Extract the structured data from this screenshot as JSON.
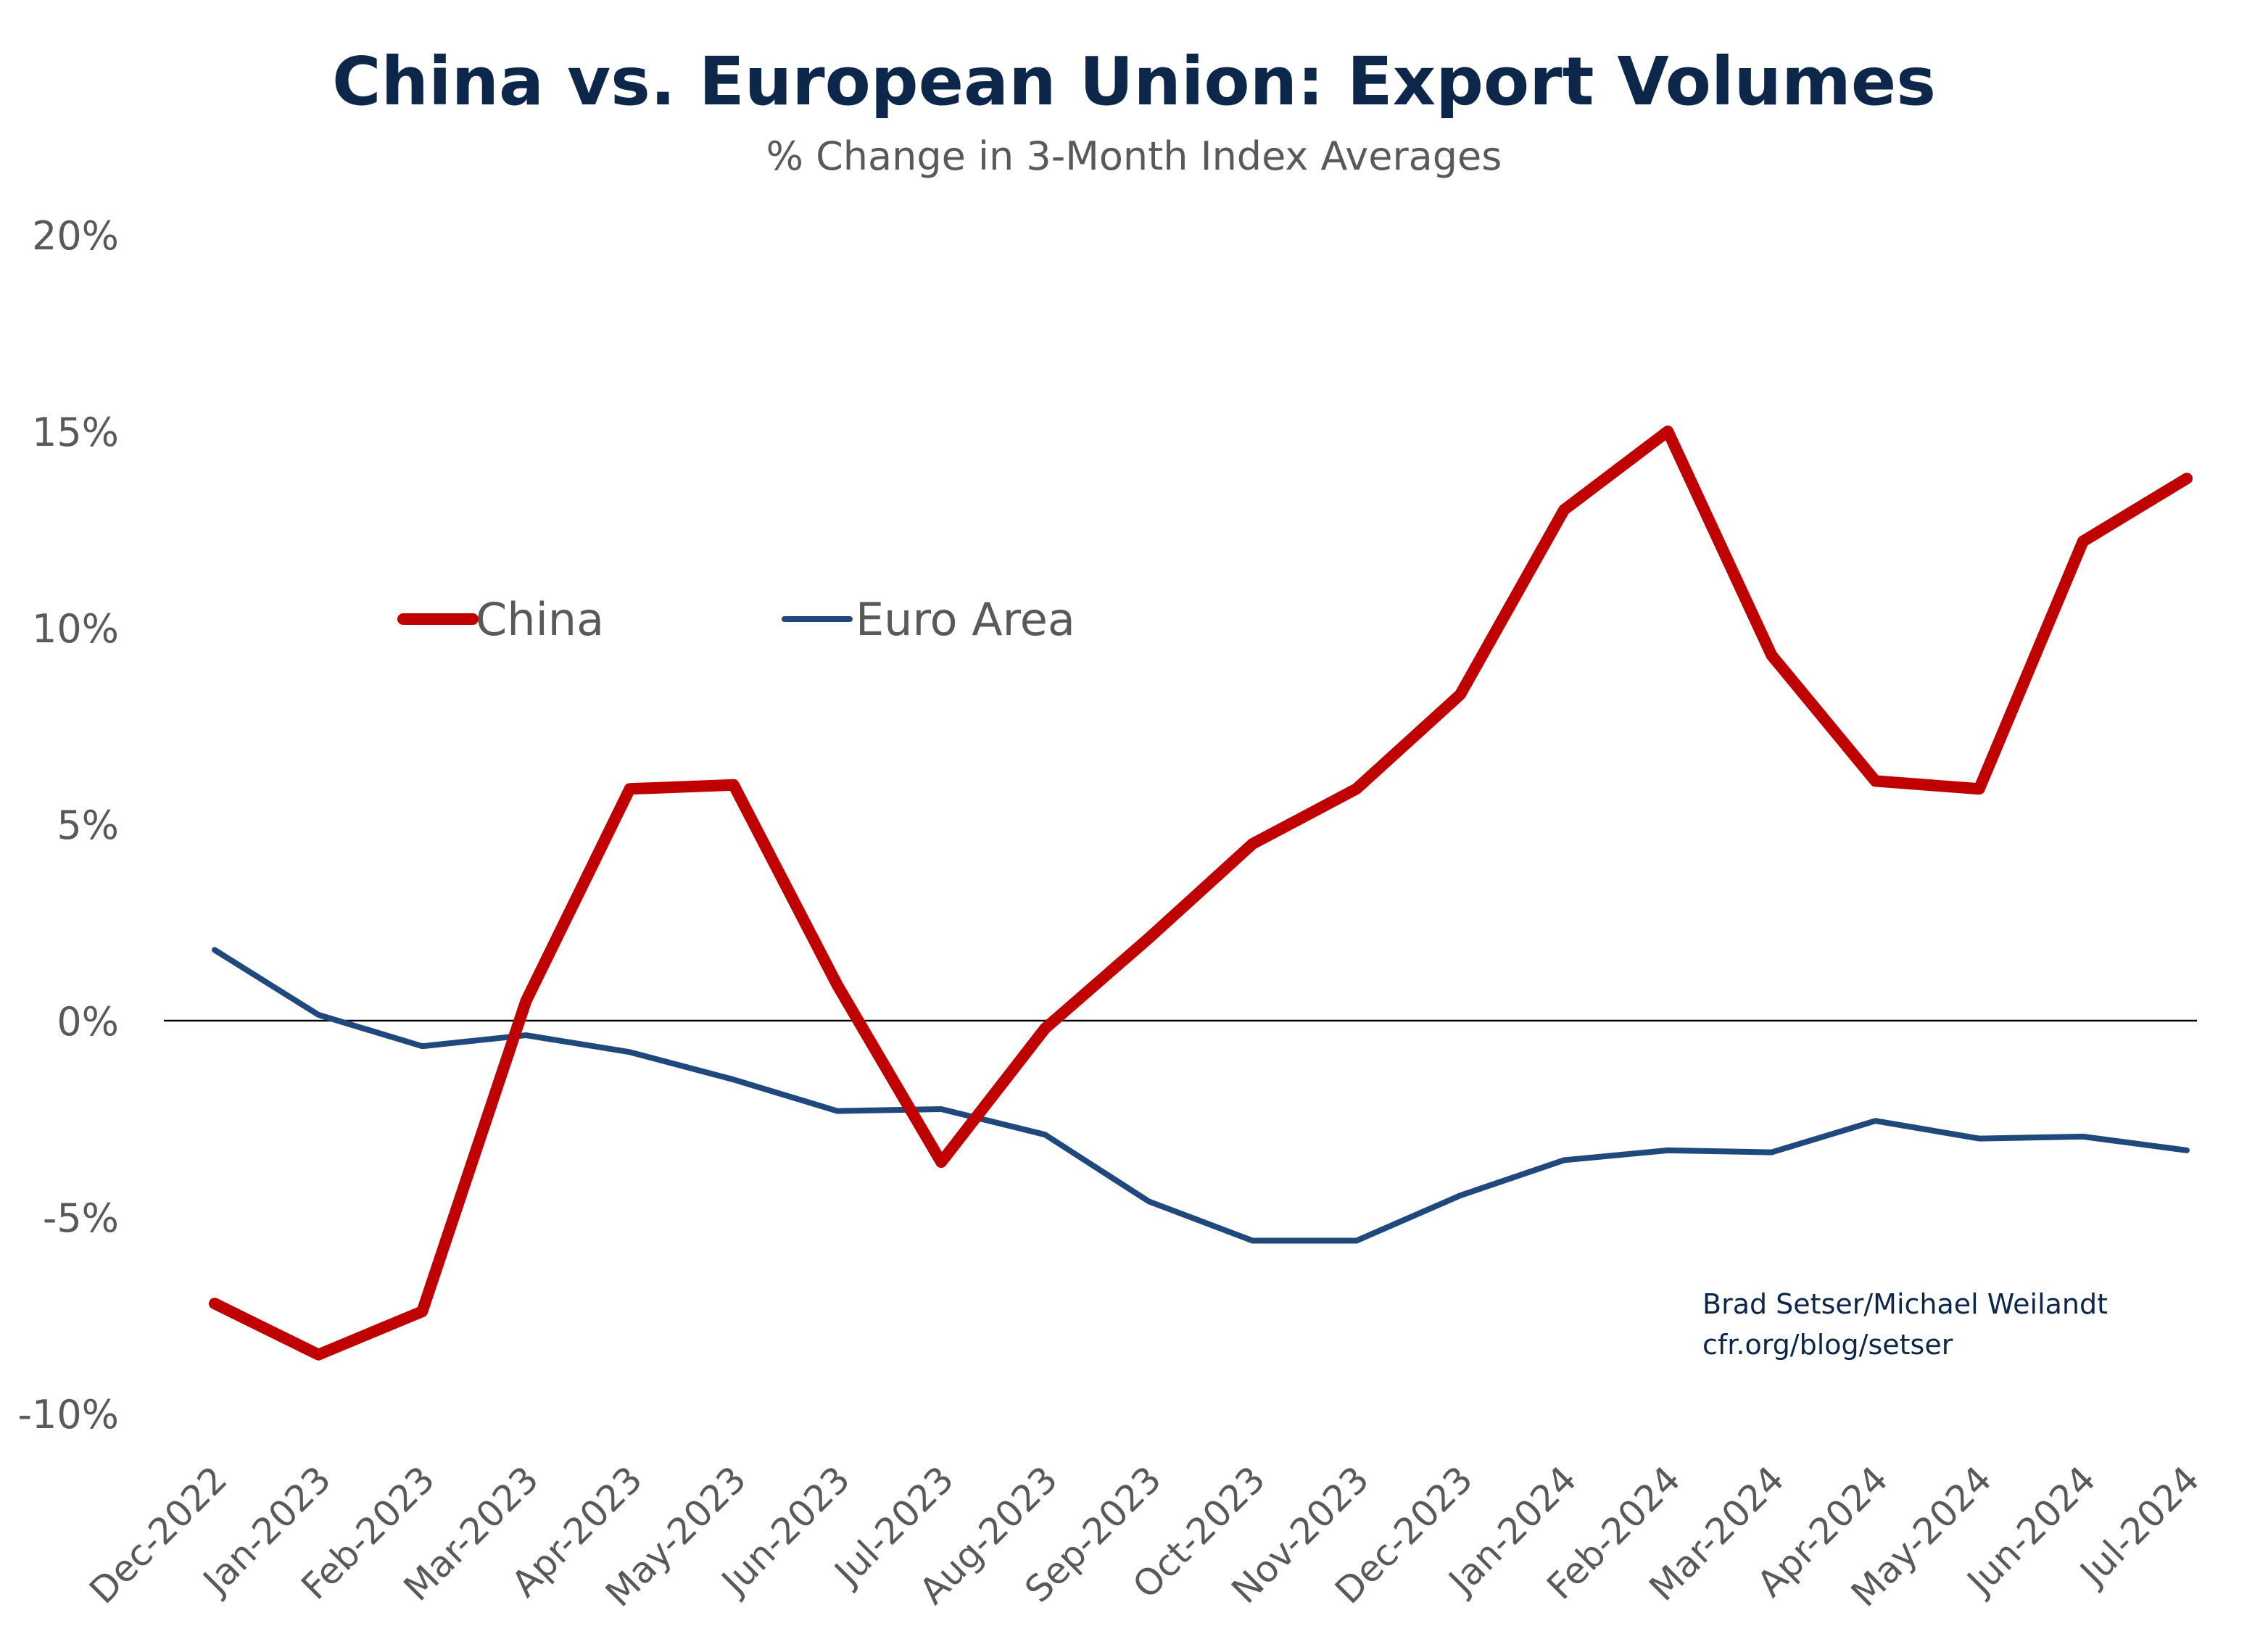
{
  "chart_data": {
    "type": "line",
    "title": "China vs. European Union: Export Volumes",
    "subtitle": "% Change in 3-Month Index Averages",
    "xlabel": "",
    "ylabel": "",
    "ylim": [
      -10,
      20
    ],
    "yticks": [
      "-10%",
      "-5%",
      "0%",
      "5%",
      "10%",
      "15%",
      "20%"
    ],
    "ytick_values": [
      -10,
      -5,
      0,
      5,
      10,
      15,
      20
    ],
    "grid": false,
    "zero_line": true,
    "legend_position": "upper-left",
    "categories": [
      "Dec-2022",
      "Jan-2023",
      "Feb-2023",
      "Mar-2023",
      "Apr-2023",
      "May-2023",
      "Jun-2023",
      "Jul-2023",
      "Aug-2023",
      "Sep-2023",
      "Oct-2023",
      "Nov-2023",
      "Dec-2023",
      "Jan-2024",
      "Feb-2024",
      "Mar-2024",
      "Apr-2024",
      "May-2024",
      "Jun-2024",
      "Jul-2024"
    ],
    "series": [
      {
        "name": "China",
        "color": "#c00000",
        "values": [
          -7.2,
          -8.5,
          -7.4,
          0.5,
          5.9,
          6.0,
          0.9,
          -3.6,
          -0.2,
          2.1,
          4.5,
          5.9,
          8.3,
          13.0,
          15.0,
          9.3,
          6.1,
          5.9,
          12.2,
          13.8
        ]
      },
      {
        "name": "Euro Area",
        "color": "#1f497d",
        "values": [
          1.8,
          0.15,
          -0.65,
          -0.37,
          -0.8,
          -1.5,
          -2.3,
          -2.25,
          -2.9,
          -4.6,
          -5.6,
          -5.6,
          -4.45,
          -3.55,
          -3.3,
          -3.35,
          -2.55,
          -3.0,
          -2.95,
          -3.3
        ]
      }
    ],
    "annotations": [
      "Brad Setser/Michael Weilandt",
      "cfr.org/blog/setser"
    ]
  }
}
